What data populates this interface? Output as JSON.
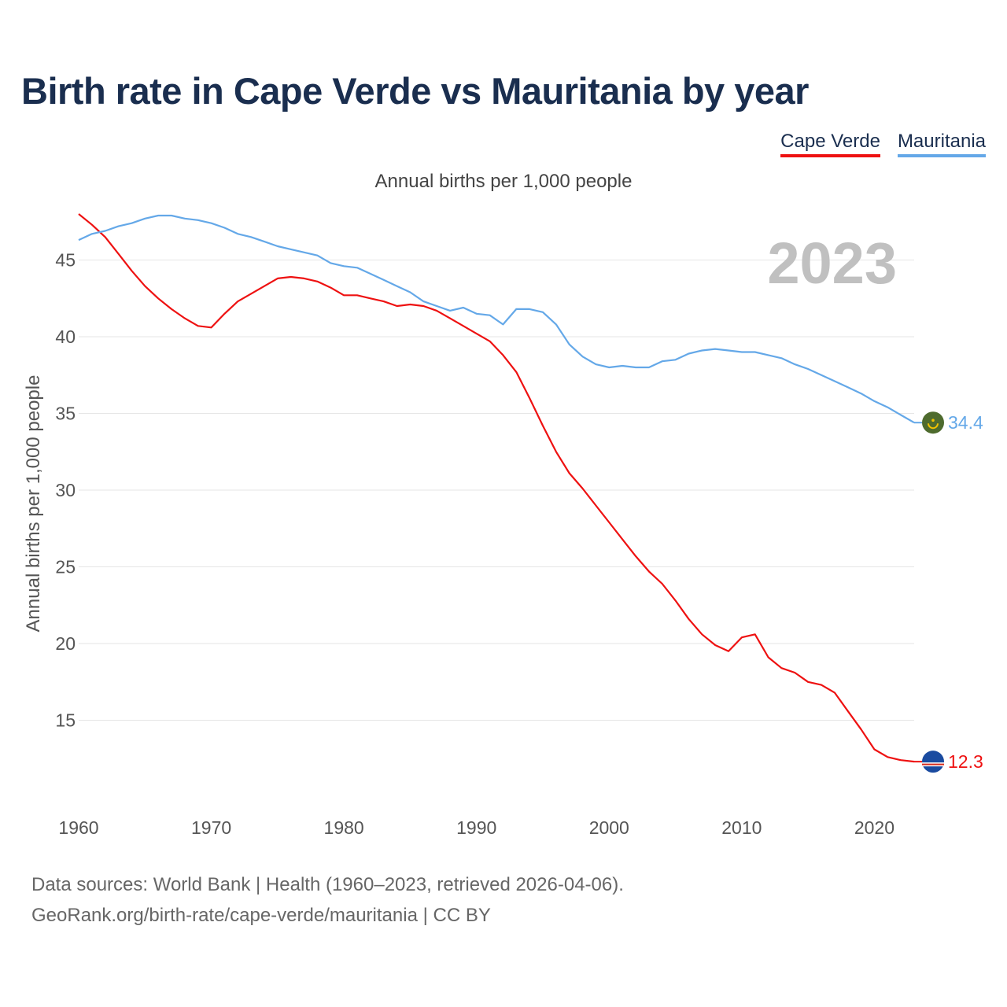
{
  "title": "Birth rate in Cape Verde vs Mauritania by year",
  "subtitle": "Annual births per 1,000 people",
  "footer": {
    "line1": "Data sources: World Bank | Health (1960–2023, retrieved 2026-04-06).",
    "line2": "GeoRank.org/birth-rate/cape-verde/mauritania | CC BY"
  },
  "colors": {
    "cape_verde": "#ee1111",
    "mauritania": "#64a8e8",
    "grid": "#e6e6e6",
    "year_label": "#c0c0c0"
  },
  "chart_data": {
    "type": "line",
    "title": "Birth rate in Cape Verde vs Mauritania by year",
    "subtitle": "Annual births per 1,000 people",
    "xlabel": "",
    "ylabel": "Annual births per 1,000 people",
    "year_label": "2023",
    "xlim": [
      1960,
      2023
    ],
    "ylim": [
      10,
      48
    ],
    "x_ticks": [
      1960,
      1970,
      1980,
      1990,
      2000,
      2010,
      2020
    ],
    "y_ticks": [
      15,
      20,
      25,
      30,
      35,
      40,
      45
    ],
    "grid": true,
    "legend_position": "top-right",
    "x": [
      1960,
      1961,
      1962,
      1963,
      1964,
      1965,
      1966,
      1967,
      1968,
      1969,
      1970,
      1971,
      1972,
      1973,
      1974,
      1975,
      1976,
      1977,
      1978,
      1979,
      1980,
      1981,
      1982,
      1983,
      1984,
      1985,
      1986,
      1987,
      1988,
      1989,
      1990,
      1991,
      1992,
      1993,
      1994,
      1995,
      1996,
      1997,
      1998,
      1999,
      2000,
      2001,
      2002,
      2003,
      2004,
      2005,
      2006,
      2007,
      2008,
      2009,
      2010,
      2011,
      2012,
      2013,
      2014,
      2015,
      2016,
      2017,
      2018,
      2019,
      2020,
      2021,
      2022,
      2023
    ],
    "series": [
      {
        "name": "Cape Verde",
        "color": "#ee1111",
        "end_label": "12.3",
        "values": [
          48.0,
          47.3,
          46.5,
          45.4,
          44.3,
          43.3,
          42.5,
          41.8,
          41.2,
          40.7,
          40.6,
          41.5,
          42.3,
          42.8,
          43.3,
          43.8,
          43.9,
          43.8,
          43.6,
          43.2,
          42.7,
          42.7,
          42.5,
          42.3,
          42.0,
          42.1,
          42.0,
          41.7,
          41.2,
          40.7,
          40.2,
          39.7,
          38.8,
          37.7,
          36.0,
          34.2,
          32.5,
          31.1,
          30.1,
          29.0,
          27.9,
          26.8,
          25.7,
          24.7,
          23.9,
          22.8,
          21.6,
          20.6,
          19.9,
          19.5,
          20.4,
          20.6,
          19.1,
          18.4,
          18.1,
          17.5,
          17.3,
          16.8,
          15.6,
          14.4,
          13.1,
          12.6,
          12.4,
          12.3
        ]
      },
      {
        "name": "Mauritania",
        "color": "#64a8e8",
        "end_label": "34.4",
        "values": [
          46.3,
          46.7,
          46.9,
          47.2,
          47.4,
          47.7,
          47.9,
          47.9,
          47.7,
          47.6,
          47.4,
          47.1,
          46.7,
          46.5,
          46.2,
          45.9,
          45.7,
          45.5,
          45.3,
          44.8,
          44.6,
          44.5,
          44.1,
          43.7,
          43.3,
          42.9,
          42.3,
          42.0,
          41.7,
          41.9,
          41.5,
          41.4,
          40.8,
          41.8,
          41.8,
          41.6,
          40.8,
          39.5,
          38.7,
          38.2,
          38.0,
          38.1,
          38.0,
          38.0,
          38.4,
          38.5,
          38.9,
          39.1,
          39.2,
          39.1,
          39.0,
          39.0,
          38.8,
          38.6,
          38.2,
          37.9,
          37.5,
          37.1,
          36.7,
          36.3,
          35.8,
          35.4,
          34.9,
          34.4
        ]
      }
    ]
  }
}
